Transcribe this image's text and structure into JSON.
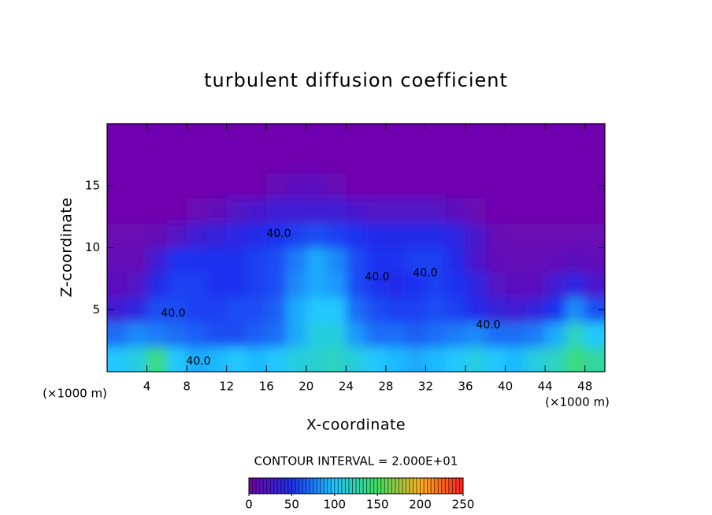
{
  "chart_data": {
    "type": "heatmap",
    "title": "turbulent diffusion coefficient",
    "x_label": "X-coordinate",
    "y_label": "Z-coordinate",
    "x_unit_label": "(×1000 m)",
    "x_unit_label_right": "(×1000 m)",
    "contour_interval_label": "CONTOUR INTERVAL = 2.000E+01",
    "contour_labels": [
      "40.0",
      "40.0",
      "40.0",
      "40.0",
      "40.0",
      "40.0"
    ],
    "xlim": [
      0,
      50
    ],
    "ylim": [
      0,
      20
    ],
    "xticks": [
      4,
      8,
      12,
      16,
      20,
      24,
      28,
      32,
      36,
      40,
      44,
      48
    ],
    "yticks": [
      5,
      10,
      15
    ],
    "x": [
      1,
      3,
      5,
      7,
      9,
      11,
      13,
      15,
      17,
      19,
      21,
      23,
      25,
      27,
      29,
      31,
      33,
      35,
      37,
      39,
      41,
      43,
      45,
      47,
      49
    ],
    "y": [
      1,
      3,
      5,
      7,
      9,
      11,
      13,
      15,
      17,
      19
    ],
    "values": [
      [
        100,
        110,
        140,
        100,
        90,
        95,
        100,
        95,
        100,
        110,
        115,
        120,
        110,
        100,
        95,
        90,
        95,
        100,
        110,
        100,
        95,
        110,
        120,
        140,
        130
      ],
      [
        70,
        80,
        75,
        70,
        65,
        60,
        60,
        65,
        70,
        90,
        110,
        110,
        85,
        70,
        70,
        65,
        70,
        75,
        80,
        70,
        70,
        75,
        90,
        120,
        100
      ],
      [
        30,
        40,
        60,
        60,
        55,
        55,
        60,
        60,
        65,
        90,
        100,
        100,
        70,
        60,
        55,
        55,
        60,
        55,
        45,
        35,
        30,
        35,
        50,
        80,
        60
      ],
      [
        15,
        20,
        45,
        55,
        55,
        50,
        50,
        55,
        60,
        80,
        90,
        85,
        60,
        50,
        45,
        50,
        55,
        50,
        40,
        20,
        15,
        15,
        30,
        40,
        25
      ],
      [
        10,
        10,
        30,
        50,
        50,
        50,
        50,
        55,
        60,
        75,
        90,
        80,
        60,
        50,
        50,
        55,
        55,
        45,
        25,
        12,
        10,
        10,
        12,
        15,
        12
      ],
      [
        8,
        8,
        10,
        20,
        30,
        35,
        40,
        45,
        50,
        55,
        60,
        55,
        50,
        45,
        45,
        45,
        45,
        40,
        25,
        10,
        8,
        8,
        8,
        8,
        8
      ],
      [
        5,
        5,
        5,
        5,
        8,
        12,
        20,
        25,
        30,
        30,
        30,
        30,
        25,
        20,
        20,
        20,
        20,
        15,
        8,
        5,
        5,
        5,
        5,
        5,
        5
      ],
      [
        5,
        5,
        5,
        5,
        5,
        5,
        5,
        5,
        10,
        15,
        15,
        10,
        5,
        5,
        5,
        5,
        5,
        5,
        5,
        5,
        5,
        5,
        5,
        5,
        5
      ],
      [
        5,
        5,
        5,
        5,
        5,
        5,
        5,
        5,
        5,
        5,
        5,
        5,
        5,
        5,
        5,
        5,
        5,
        5,
        5,
        5,
        5,
        5,
        5,
        5,
        5
      ],
      [
        5,
        5,
        5,
        5,
        5,
        5,
        5,
        5,
        5,
        5,
        5,
        5,
        5,
        5,
        5,
        5,
        5,
        5,
        5,
        5,
        5,
        5,
        5,
        5,
        5
      ]
    ],
    "colormap": [
      "#7800a8",
      "#1a30f0",
      "#20c8ff",
      "#40e060",
      "#ffb020",
      "#ff2020"
    ],
    "colorbar_lim": [
      0,
      250
    ],
    "colorbar_ticks": [
      0,
      50,
      100,
      150,
      200,
      250
    ]
  }
}
